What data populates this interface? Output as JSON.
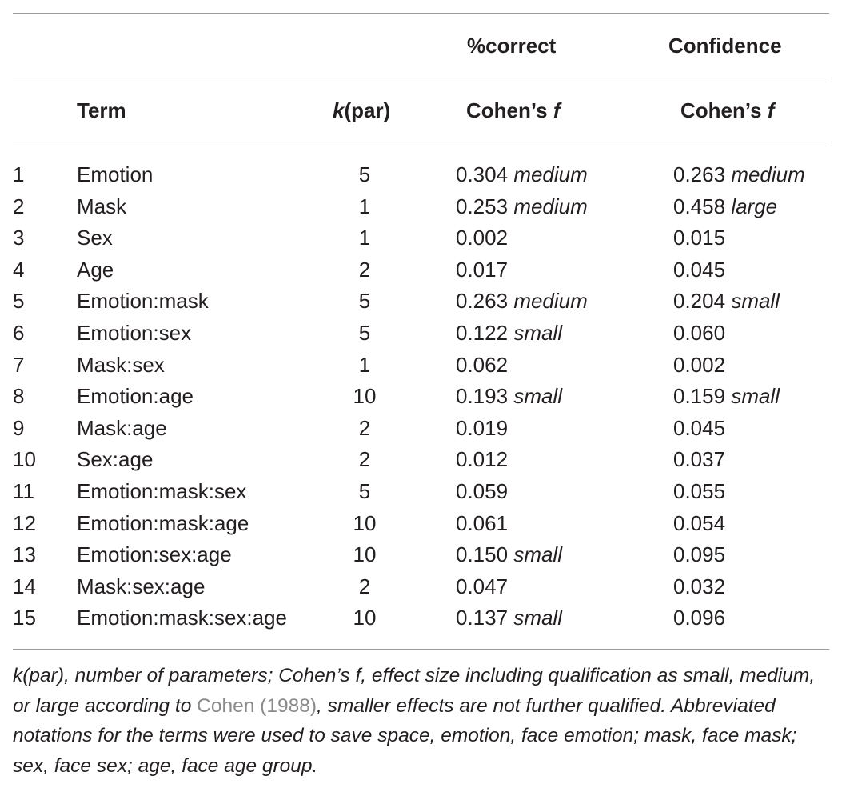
{
  "header_groups": {
    "pct_correct": "%correct",
    "confidence": "Confidence"
  },
  "columns": {
    "term": "Term",
    "k_italic": "k",
    "k_rest": "(par)",
    "cohen_prefix": "Cohen’s ",
    "cohen_f": "f"
  },
  "rows": [
    {
      "n": "1",
      "term": "Emotion",
      "k": "5",
      "pc_val": "0.304",
      "pc_q": "medium",
      "cf_val": "0.263",
      "cf_q": "medium"
    },
    {
      "n": "2",
      "term": "Mask",
      "k": "1",
      "pc_val": "0.253",
      "pc_q": "medium",
      "cf_val": "0.458",
      "cf_q": "large"
    },
    {
      "n": "3",
      "term": "Sex",
      "k": "1",
      "pc_val": "0.002",
      "pc_q": "",
      "cf_val": "0.015",
      "cf_q": ""
    },
    {
      "n": "4",
      "term": "Age",
      "k": "2",
      "pc_val": "0.017",
      "pc_q": "",
      "cf_val": "0.045",
      "cf_q": ""
    },
    {
      "n": "5",
      "term": "Emotion:mask",
      "k": "5",
      "pc_val": "0.263",
      "pc_q": "medium",
      "cf_val": "0.204",
      "cf_q": "small"
    },
    {
      "n": "6",
      "term": "Emotion:sex",
      "k": "5",
      "pc_val": "0.122",
      "pc_q": "small",
      "cf_val": "0.060",
      "cf_q": ""
    },
    {
      "n": "7",
      "term": "Mask:sex",
      "k": "1",
      "pc_val": "0.062",
      "pc_q": "",
      "cf_val": "0.002",
      "cf_q": ""
    },
    {
      "n": "8",
      "term": "Emotion:age",
      "k": "10",
      "pc_val": "0.193",
      "pc_q": "small",
      "cf_val": "0.159",
      "cf_q": "small"
    },
    {
      "n": "9",
      "term": "Mask:age",
      "k": "2",
      "pc_val": "0.019",
      "pc_q": "",
      "cf_val": "0.045",
      "cf_q": ""
    },
    {
      "n": "10",
      "term": "Sex:age",
      "k": "2",
      "pc_val": "0.012",
      "pc_q": "",
      "cf_val": "0.037",
      "cf_q": ""
    },
    {
      "n": "11",
      "term": "Emotion:mask:sex",
      "k": "5",
      "pc_val": "0.059",
      "pc_q": "",
      "cf_val": "0.055",
      "cf_q": ""
    },
    {
      "n": "12",
      "term": "Emotion:mask:age",
      "k": "10",
      "pc_val": "0.061",
      "pc_q": "",
      "cf_val": "0.054",
      "cf_q": ""
    },
    {
      "n": "13",
      "term": "Emotion:sex:age",
      "k": "10",
      "pc_val": "0.150",
      "pc_q": "small",
      "cf_val": "0.095",
      "cf_q": ""
    },
    {
      "n": "14",
      "term": "Mask:sex:age",
      "k": "2",
      "pc_val": "0.047",
      "pc_q": "",
      "cf_val": "0.032",
      "cf_q": ""
    },
    {
      "n": "15",
      "term": "Emotion:mask:sex:age",
      "k": "10",
      "pc_val": "0.137",
      "pc_q": "small",
      "cf_val": "0.096",
      "cf_q": ""
    }
  ],
  "footnote": {
    "part1": "k(par), number of parameters; Cohen’s f, effect size including qualification as small, medium, or large according to ",
    "citation": "Cohen (1988)",
    "part2": ", smaller effects are not further qualified. Abbreviated notations for the terms were used to save space, emotion, face emotion; mask, face mask; sex, face sex; age, face age group."
  }
}
